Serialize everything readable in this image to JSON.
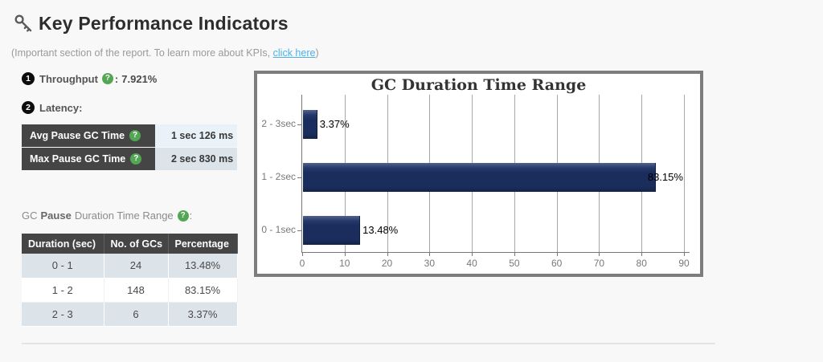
{
  "page": {
    "title": "Key Performance Indicators",
    "subtitle_prefix": "(Important section of the report. To learn more about KPIs, ",
    "subtitle_link": "click here",
    "subtitle_suffix": ")"
  },
  "icons": {
    "help": "?"
  },
  "kpis": {
    "throughput": {
      "badge": "1",
      "label": "Throughput",
      "separator": ":",
      "value": "7.921%"
    },
    "latency": {
      "badge": "2",
      "label": "Latency:"
    }
  },
  "latency_table": {
    "rows": [
      {
        "label": "Avg Pause GC Time",
        "value": "1 sec 126 ms"
      },
      {
        "label": "Max Pause GC Time",
        "value": "2 sec 830 ms"
      }
    ]
  },
  "duration_section": {
    "prefix": "GC",
    "bold": "Pause",
    "suffix": "Duration Time Range",
    "colon": ":"
  },
  "duration_table": {
    "headers": [
      "Duration (sec)",
      "No. of GCs",
      "Percentage"
    ],
    "rows": [
      [
        "0 - 1",
        "24",
        "13.48%"
      ],
      [
        "1 - 2",
        "148",
        "83.15%"
      ],
      [
        "2 - 3",
        "6",
        "3.37%"
      ]
    ]
  },
  "chart_data": {
    "type": "bar",
    "orientation": "horizontal",
    "title": "GC Duration Time Range",
    "categories": [
      "2 - 3sec",
      "1 - 2sec",
      "0 - 1sec"
    ],
    "values": [
      3.37,
      83.15,
      13.48
    ],
    "data_labels": [
      "3.37%",
      "83.15%",
      "13.48%"
    ],
    "xlim": [
      0,
      90
    ],
    "xticks": [
      0,
      10,
      20,
      30,
      40,
      50,
      60,
      70,
      80,
      90
    ],
    "grid": true,
    "legend": false,
    "bar_color": "#1b2d5c"
  },
  "colors": {
    "page_bg": "#f8f8f8",
    "link_blue": "#4ab1e8",
    "help_green": "#53a653",
    "bar_navy": "#1b2d5c",
    "table_header_bg": "#454545",
    "row_alt_bg": "#dce3e9",
    "value_cell_blue": "#e9f2f9",
    "chart_border": "#7d7d7d"
  }
}
